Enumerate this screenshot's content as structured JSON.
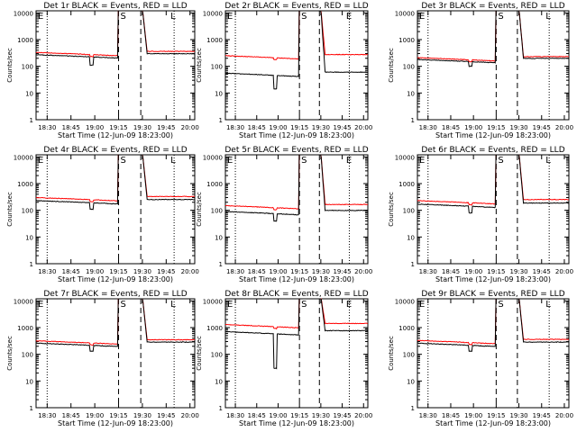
{
  "chart_data": [
    {
      "type": "line",
      "title": "Det 1r BLACK = Events, RED = LLD",
      "xlabel": "Start Time (12-Jun-09 18:23:00)",
      "ylabel": "Counts/sec",
      "markers": [
        "E",
        "S",
        "L"
      ],
      "red_base": 330,
      "black_base": 270,
      "black_dip": 110
    },
    {
      "type": "line",
      "title": "Det 2r BLACK = Events, RED = LLD",
      "xlabel": "Start Time (12-Jun-09 18:23:00)",
      "ylabel": "Counts/sec",
      "markers": [
        "E",
        "S",
        "E"
      ],
      "red_base": 250,
      "black_base": 55,
      "black_dip": 14
    },
    {
      "type": "line",
      "title": "Det 3r BLACK = Events, RED = LLD",
      "xlabel": "Start Time (12-Jun-09 18:23:00)",
      "ylabel": "Counts/sec",
      "markers": [
        "E",
        "S",
        "L"
      ],
      "red_base": 210,
      "black_base": 180,
      "black_dip": 100
    },
    {
      "type": "line",
      "title": "Det 4r BLACK = Events, RED = LLD",
      "xlabel": "Start Time (12-Jun-09 18:23:00)",
      "ylabel": "Counts/sec",
      "markers": [
        "E",
        "S",
        "L"
      ],
      "red_base": 300,
      "black_base": 230,
      "black_dip": 110
    },
    {
      "type": "line",
      "title": "Det 5r BLACK = Events, RED = LLD",
      "xlabel": "Start Time (12-Jun-09 18:23:00)",
      "ylabel": "Counts/sec",
      "markers": [
        "E",
        "S",
        "E"
      ],
      "red_base": 150,
      "black_base": 90,
      "black_dip": 40
    },
    {
      "type": "line",
      "title": "Det 6r BLACK = Events, RED = LLD",
      "xlabel": "Start Time (12-Jun-09 18:23:00)",
      "ylabel": "Counts/sec",
      "markers": [
        "E",
        "S",
        "L"
      ],
      "red_base": 230,
      "black_base": 170,
      "black_dip": 80
    },
    {
      "type": "line",
      "title": "Det 7r BLACK = Events, RED = LLD",
      "xlabel": "Start Time (12-Jun-09 18:23:00)",
      "ylabel": "Counts/sec",
      "markers": [
        "E",
        "S",
        "L"
      ],
      "red_base": 320,
      "black_base": 260,
      "black_dip": 130
    },
    {
      "type": "line",
      "title": "Det 8r BLACK = Events, RED = LLD",
      "xlabel": "Start Time (12-Jun-09 18:23:00)",
      "ylabel": "Counts/sec",
      "markers": [
        "E",
        "S",
        "E"
      ],
      "red_base": 1300,
      "black_base": 700,
      "black_dip": 30
    },
    {
      "type": "line",
      "title": "Det 9r BLACK = Events, RED = LLD",
      "xlabel": "Start Time (12-Jun-09 18:23:00)",
      "ylabel": "Counts/sec",
      "markers": [
        "E",
        "S",
        "L"
      ],
      "red_base": 330,
      "black_base": 260,
      "black_dip": 130
    }
  ],
  "axes": {
    "xticks": [
      "18:30",
      "18:45",
      "19:00",
      "19:15",
      "19:30",
      "19:45",
      "20:00"
    ],
    "xtick_minutes": [
      30,
      45,
      60,
      75,
      90,
      105,
      120
    ],
    "xrange_minutes": [
      23,
      123
    ],
    "yticks": [
      "1",
      "10",
      "100",
      "1000",
      "10000"
    ],
    "ylim": [
      1,
      12000
    ],
    "yscale": "log",
    "dotted_minutes": [
      30,
      110
    ],
    "dashed_minutes": [
      75,
      89
    ],
    "saa_peak": 15000
  },
  "colors": {
    "events": "#000000",
    "lld": "#ff0000",
    "axes": "#000000"
  }
}
